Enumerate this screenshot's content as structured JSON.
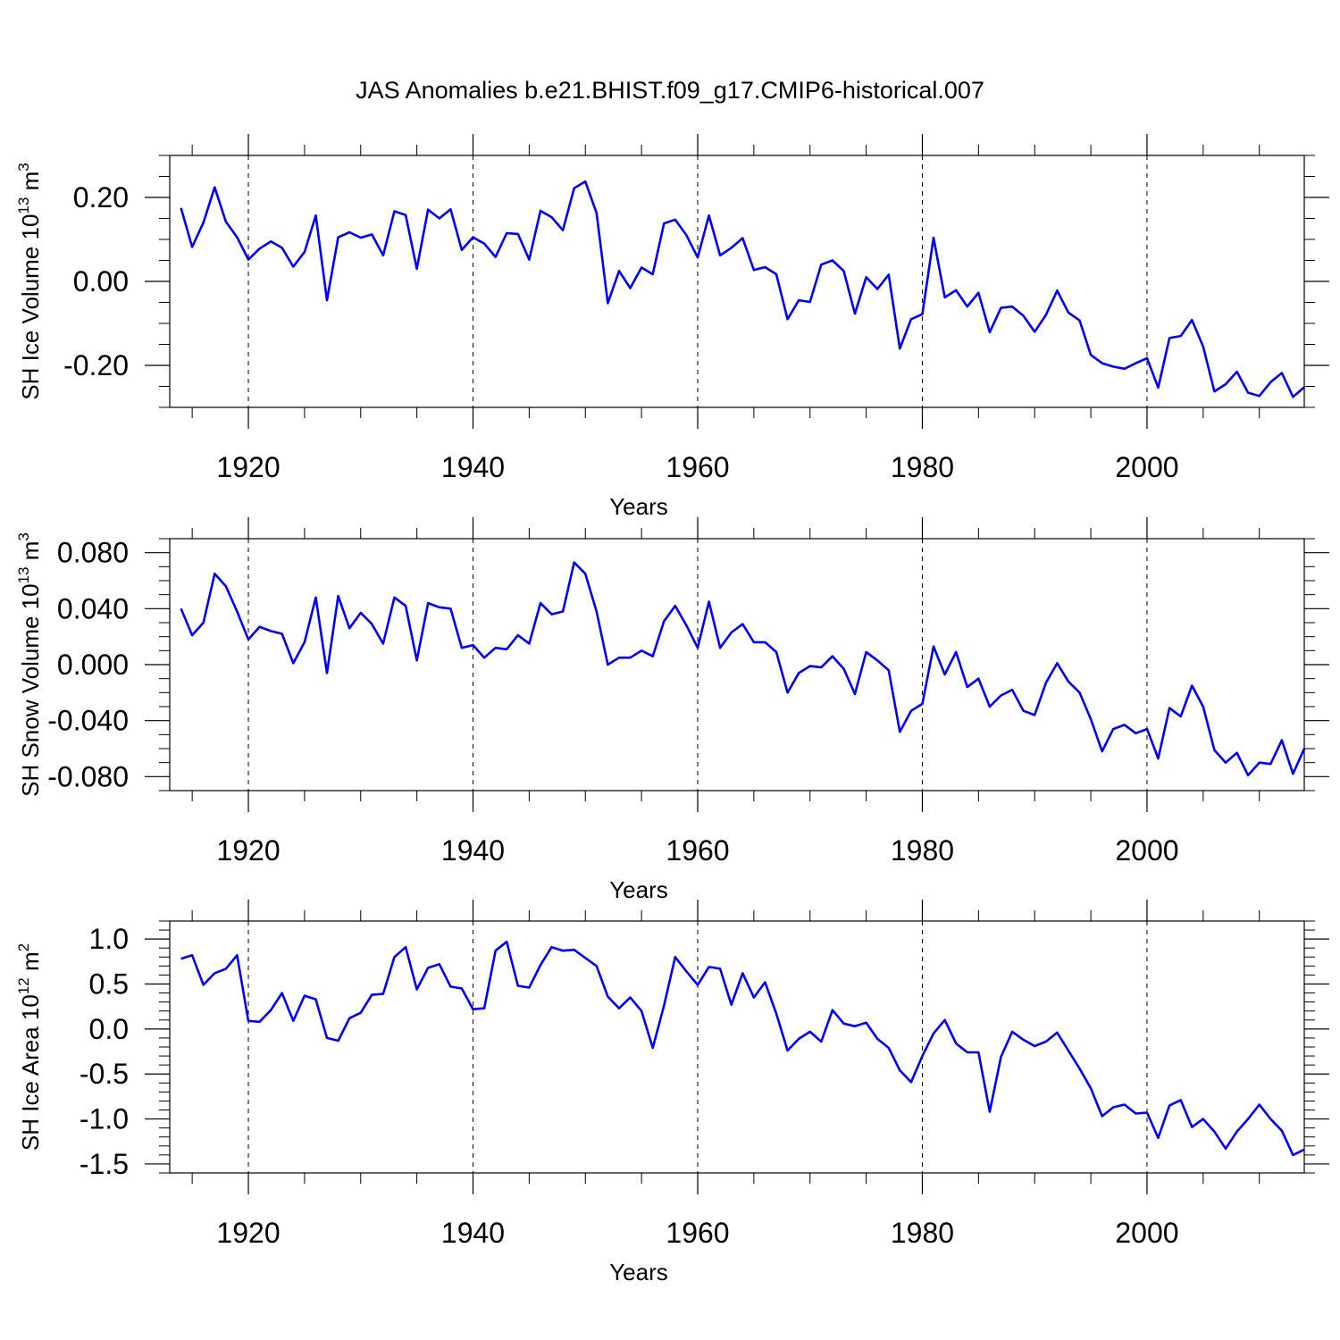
{
  "title": "JAS Anomalies b.e21.BHIST.f09_g17.CMIP6-historical.007",
  "colors": {
    "series": "#0000ff",
    "axis": "#000000",
    "grid": "#000000"
  },
  "chart_data": [
    {
      "type": "line",
      "title": "",
      "xlabel": "Years",
      "ylabel": {
        "text": "SH Ice Volume 10",
        "sup": "13",
        "unit": " m",
        "unit_sup": "3"
      },
      "xlim": [
        1913,
        2014
      ],
      "ylim": [
        -0.3,
        0.3
      ],
      "x_ticks": [
        1920,
        1940,
        1960,
        1980,
        2000
      ],
      "x_tick_labels": [
        "1920",
        "1940",
        "1960",
        "1980",
        "2000"
      ],
      "y_ticks": [
        -0.2,
        0.0,
        0.2
      ],
      "y_tick_labels": [
        "-0.20",
        "0.00",
        "0.20"
      ],
      "y_minor_step": 0.05,
      "grid": "vertical dashed",
      "x_start": 1914,
      "values": [
        0.175,
        0.082,
        0.14,
        0.224,
        0.142,
        0.105,
        0.052,
        0.078,
        0.095,
        0.08,
        0.035,
        0.07,
        0.157,
        -0.045,
        0.105,
        0.117,
        0.104,
        0.112,
        0.062,
        0.167,
        0.158,
        0.03,
        0.171,
        0.15,
        0.172,
        0.075,
        0.105,
        0.09,
        0.058,
        0.115,
        0.113,
        0.052,
        0.168,
        0.153,
        0.122,
        0.222,
        0.238,
        0.163,
        -0.052,
        0.025,
        -0.016,
        0.033,
        0.017,
        0.138,
        0.147,
        0.11,
        0.057,
        0.157,
        0.062,
        0.08,
        0.103,
        0.027,
        0.034,
        0.017,
        -0.09,
        -0.045,
        -0.049,
        0.04,
        0.05,
        0.025,
        -0.077,
        0.01,
        -0.018,
        0.016,
        -0.16,
        -0.09,
        -0.078,
        0.104,
        -0.038,
        -0.021,
        -0.06,
        -0.027,
        -0.121,
        -0.063,
        -0.06,
        -0.082,
        -0.12,
        -0.08,
        -0.022,
        -0.074,
        -0.093,
        -0.175,
        -0.195,
        -0.203,
        -0.208,
        -0.195,
        -0.183,
        -0.253,
        -0.135,
        -0.13,
        -0.092,
        -0.155,
        -0.262,
        -0.245,
        -0.215,
        -0.265,
        -0.273,
        -0.24,
        -0.218,
        -0.275,
        -0.252
      ]
    },
    {
      "type": "line",
      "title": "",
      "xlabel": "Years",
      "ylabel": {
        "text": "SH Snow Volume 10",
        "sup": "13",
        "unit": " m",
        "unit_sup": "3"
      },
      "xlim": [
        1913,
        2014
      ],
      "ylim": [
        -0.09,
        0.09
      ],
      "x_ticks": [
        1920,
        1940,
        1960,
        1980,
        2000
      ],
      "x_tick_labels": [
        "1920",
        "1940",
        "1960",
        "1980",
        "2000"
      ],
      "y_ticks": [
        -0.08,
        -0.04,
        0.0,
        0.04,
        0.08
      ],
      "y_tick_labels": [
        "-0.080",
        "-0.040",
        "0.000",
        "0.040",
        "0.080"
      ],
      "y_minor_step": 0.01,
      "grid": "vertical dashed",
      "x_start": 1914,
      "values": [
        0.04,
        0.021,
        0.03,
        0.065,
        0.056,
        0.038,
        0.018,
        0.027,
        0.024,
        0.022,
        0.001,
        0.016,
        0.048,
        -0.006,
        0.049,
        0.026,
        0.037,
        0.029,
        0.015,
        0.048,
        0.042,
        0.003,
        0.044,
        0.041,
        0.04,
        0.012,
        0.014,
        0.005,
        0.012,
        0.011,
        0.021,
        0.015,
        0.044,
        0.036,
        0.038,
        0.073,
        0.065,
        0.038,
        0.0,
        0.005,
        0.005,
        0.01,
        0.006,
        0.031,
        0.042,
        0.028,
        0.012,
        0.045,
        0.012,
        0.023,
        0.029,
        0.016,
        0.016,
        0.009,
        -0.02,
        -0.006,
        -0.001,
        -0.002,
        0.006,
        -0.003,
        -0.021,
        0.009,
        0.003,
        -0.004,
        -0.048,
        -0.033,
        -0.028,
        0.013,
        -0.007,
        0.009,
        -0.016,
        -0.01,
        -0.03,
        -0.022,
        -0.018,
        -0.033,
        -0.036,
        -0.013,
        0.001,
        -0.012,
        -0.02,
        -0.039,
        -0.062,
        -0.046,
        -0.043,
        -0.049,
        -0.046,
        -0.067,
        -0.031,
        -0.037,
        -0.015,
        -0.03,
        -0.061,
        -0.07,
        -0.063,
        -0.079,
        -0.07,
        -0.071,
        -0.054,
        -0.078,
        -0.06
      ]
    },
    {
      "type": "line",
      "title": "",
      "xlabel": "Years",
      "ylabel": {
        "text": "SH Ice Area 10",
        "sup": "12",
        "unit": " m",
        "unit_sup": "2"
      },
      "xlim": [
        1913,
        2014
      ],
      "ylim": [
        -1.6,
        1.2
      ],
      "x_ticks": [
        1920,
        1940,
        1960,
        1980,
        2000
      ],
      "x_tick_labels": [
        "1920",
        "1940",
        "1960",
        "1980",
        "2000"
      ],
      "y_ticks": [
        -1.5,
        -1.0,
        -0.5,
        0.0,
        0.5,
        1.0
      ],
      "y_tick_labels": [
        "-1.5",
        "-1.0",
        "-0.5",
        "0.0",
        "0.5",
        "1.0"
      ],
      "y_minor_step": 0.1,
      "grid": "vertical dashed",
      "x_start": 1914,
      "values": [
        0.78,
        0.82,
        0.49,
        0.62,
        0.67,
        0.82,
        0.09,
        0.08,
        0.21,
        0.4,
        0.09,
        0.37,
        0.33,
        -0.1,
        -0.13,
        0.12,
        0.18,
        0.38,
        0.39,
        0.8,
        0.91,
        0.44,
        0.68,
        0.72,
        0.47,
        0.45,
        0.22,
        0.23,
        0.87,
        0.97,
        0.48,
        0.46,
        0.71,
        0.91,
        0.87,
        0.88,
        0.79,
        0.7,
        0.36,
        0.23,
        0.35,
        0.2,
        -0.21,
        0.26,
        0.8,
        0.64,
        0.49,
        0.69,
        0.67,
        0.27,
        0.62,
        0.35,
        0.52,
        0.17,
        -0.24,
        -0.11,
        -0.03,
        -0.14,
        0.21,
        0.06,
        0.03,
        0.07,
        -0.11,
        -0.21,
        -0.46,
        -0.59,
        -0.3,
        -0.05,
        0.1,
        -0.16,
        -0.26,
        -0.26,
        -0.92,
        -0.31,
        -0.03,
        -0.12,
        -0.19,
        -0.14,
        -0.04,
        -0.24,
        -0.44,
        -0.66,
        -0.97,
        -0.87,
        -0.84,
        -0.94,
        -0.93,
        -1.21,
        -0.85,
        -0.79,
        -1.09,
        -1.0,
        -1.14,
        -1.33,
        -1.14,
        -1.0,
        -0.84,
        -1.0,
        -1.13,
        -1.4,
        -1.34
      ]
    }
  ]
}
